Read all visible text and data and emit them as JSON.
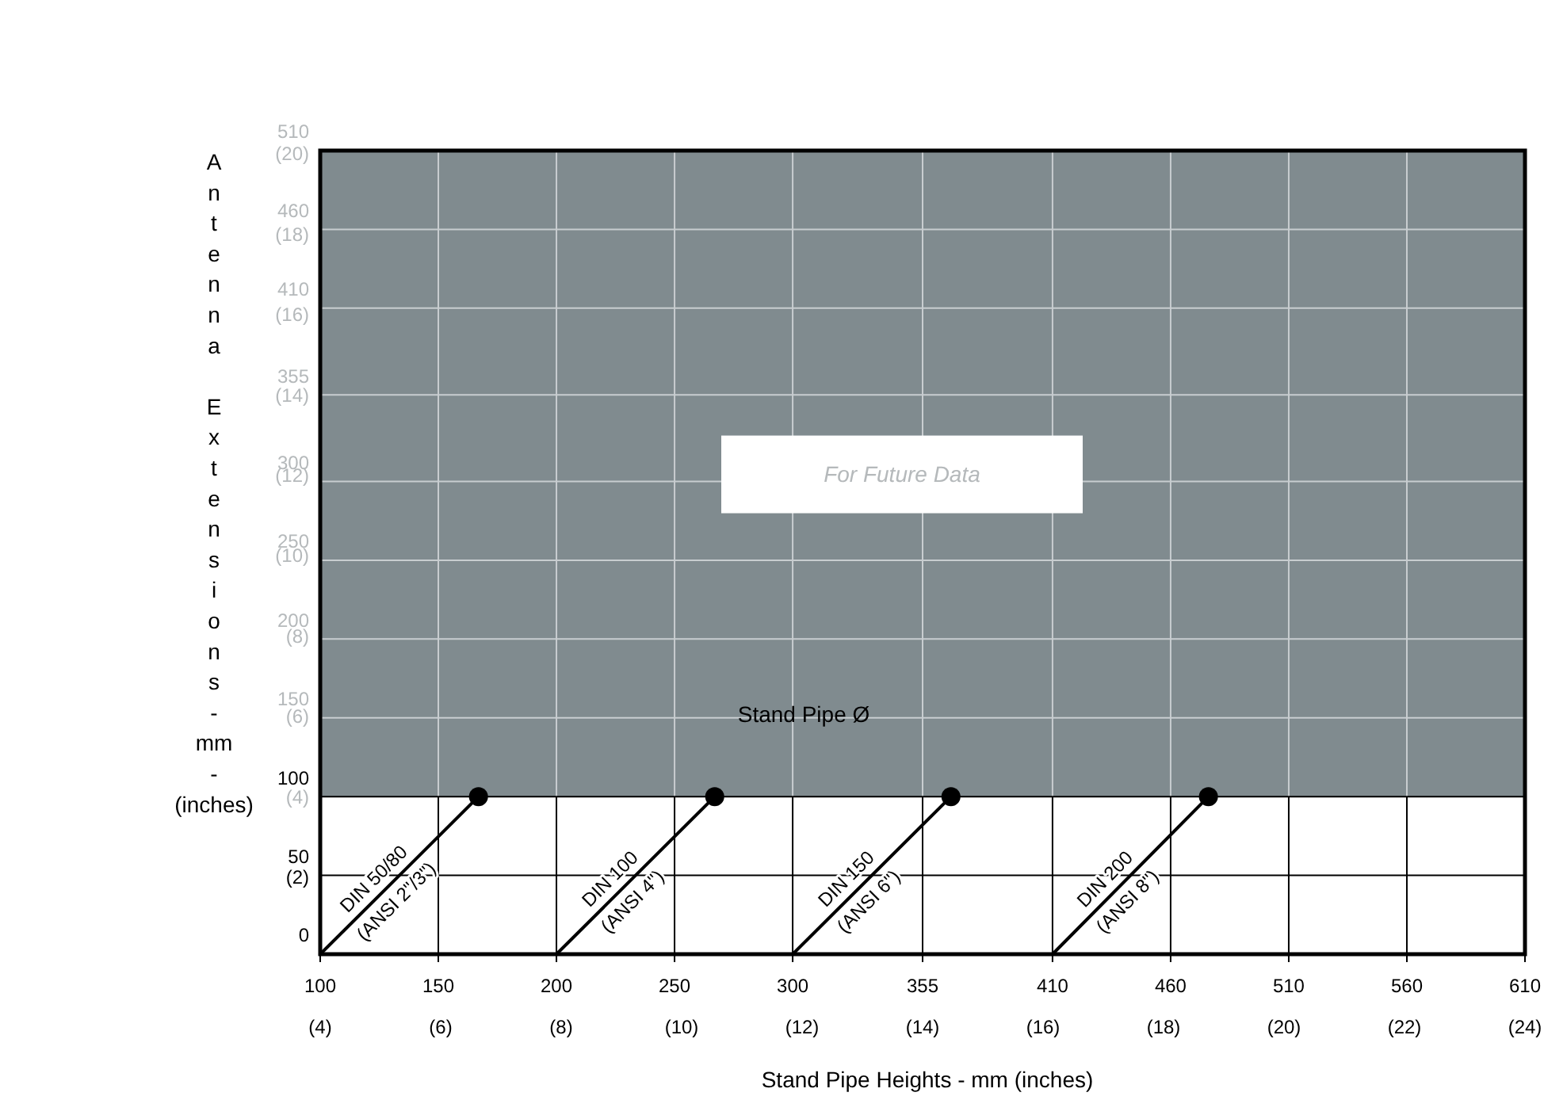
{
  "chart_data": {
    "type": "line",
    "xlabel": "Stand Pipe Heights - mm (inches)",
    "ylabel": "Antenna Extensions - mm - (inches)",
    "xlim": [
      100,
      610
    ],
    "ylim": [
      0,
      510
    ],
    "xticks": [
      100,
      150,
      200,
      250,
      300,
      355,
      410,
      460,
      510,
      560,
      610
    ],
    "x2lim": [
      4,
      24
    ],
    "x2ticks": [
      {
        "value": 4,
        "label": "(4)"
      },
      {
        "value": 6,
        "label": "(6)"
      },
      {
        "value": 8,
        "label": "(8)"
      },
      {
        "value": 10,
        "label": "(10)"
      },
      {
        "value": 12,
        "label": "(12)"
      },
      {
        "value": 14,
        "label": "(14)"
      },
      {
        "value": 16,
        "label": "(16)"
      },
      {
        "value": 18,
        "label": "(18)"
      },
      {
        "value": 20,
        "label": "(20)"
      },
      {
        "value": 22,
        "label": "(22)"
      },
      {
        "value": 24,
        "label": "(24)"
      }
    ],
    "yticks": [
      0,
      50,
      100,
      150,
      200,
      250,
      300,
      355,
      410,
      460,
      510
    ],
    "y2lim": [
      0,
      20
    ],
    "y2ticks": [
      {
        "value": 2,
        "label": "(2)"
      },
      {
        "value": 4,
        "label": "(4)"
      },
      {
        "value": 6,
        "label": "(6)"
      },
      {
        "value": 8,
        "label": "(8)"
      },
      {
        "value": 10,
        "label": "(10)"
      },
      {
        "value": 12,
        "label": "(12)"
      },
      {
        "value": 14,
        "label": "(14)"
      },
      {
        "value": 16,
        "label": "(16)"
      },
      {
        "value": 18,
        "label": "(18)"
      },
      {
        "value": 20,
        "label": "(20)"
      }
    ],
    "grid": true,
    "line_style": "solid",
    "bands": [
      {
        "axis": "y",
        "from": 100,
        "to": 510,
        "label": "For Future Data",
        "color": "#808b8f"
      }
    ],
    "series": [
      {
        "color": "#000000",
        "x": [
          100,
          167
        ],
        "values": [
          0,
          100
        ]
      },
      {
        "color": "#000000",
        "x": [
          200,
          267
        ],
        "values": [
          0,
          100
        ]
      },
      {
        "color": "#000000",
        "x": [
          300,
          367
        ],
        "values": [
          0,
          100
        ]
      },
      {
        "color": "#000000",
        "x": [
          410,
          476
        ],
        "values": [
          0,
          100
        ]
      },
      {
        "type": "scatter",
        "marker": "circle",
        "color": "#000000",
        "x": [
          167,
          267,
          367,
          476
        ],
        "values": [
          100,
          100,
          100,
          100
        ]
      }
    ],
    "annotations": [
      "Stand Pipe Ø",
      "DIN 50/80",
      "(ANSI 2\"/3\")",
      "DIN 100",
      "(ANSI 4\")",
      "DIN 150",
      "(ANSI 6\")",
      "DIN 200",
      "(ANSI 8\")"
    ]
  }
}
